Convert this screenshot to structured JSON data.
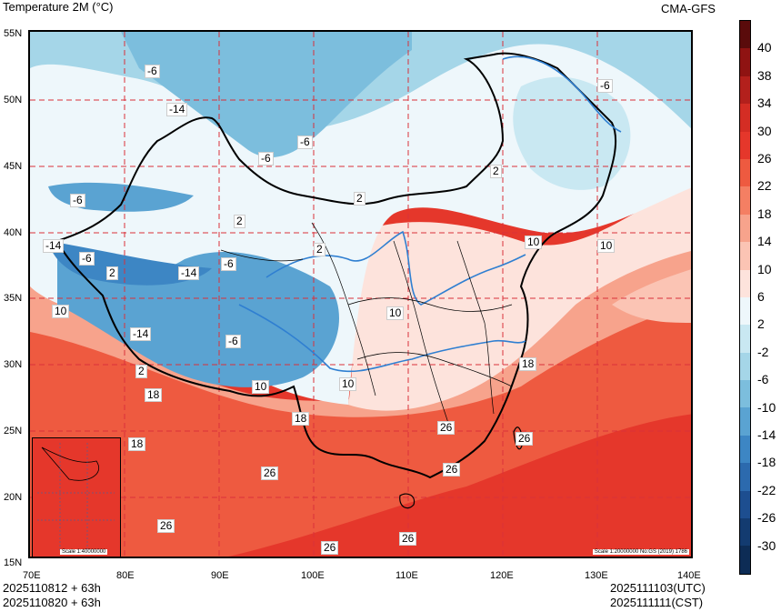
{
  "title": "Temperature  2M (°C)",
  "source": "CMA-GFS",
  "lat_labels": [
    "55N",
    "50N",
    "45N",
    "40N",
    "35N",
    "30N",
    "25N",
    "20N",
    "15N"
  ],
  "lon_labels": [
    "70E",
    "80E",
    "90E",
    "100E",
    "110E",
    "120E",
    "130E",
    "140E"
  ],
  "colorbar": {
    "labels": [
      "40",
      "38",
      "34",
      "30",
      "26",
      "22",
      "18",
      "14",
      "10",
      "6",
      "2",
      "-2",
      "-6",
      "-10",
      "-14",
      "-18",
      "-22",
      "-26",
      "-30"
    ],
    "colors": [
      "#5a0b0b",
      "#8f1312",
      "#b3201c",
      "#d42d24",
      "#e5372b",
      "#ee5a40",
      "#f47f63",
      "#f7a38c",
      "#fbc4b4",
      "#fde3dc",
      "#eef7fb",
      "#c9e8f2",
      "#a5d6e8",
      "#7cbedd",
      "#5aa3d2",
      "#3d86c4",
      "#2c6aae",
      "#1d4e90",
      "#133b70",
      "#0d2c55"
    ]
  },
  "contour_labels": [
    "-6",
    "-14",
    "-6",
    "-6",
    "-6",
    "2",
    "2",
    "2",
    "-14",
    "-6",
    "-14",
    "-6",
    "2",
    "10",
    "-14",
    "10",
    "-6",
    "2",
    "10",
    "2",
    "10",
    "-6",
    "10",
    "18",
    "10",
    "18",
    "26",
    "26",
    "26",
    "26",
    "26",
    "18",
    "18",
    "26",
    "26"
  ],
  "inset_scale": "Scale 1:40000000",
  "main_scale": "Scale 1:20000000 No:GS (2019) 1786",
  "init_times": [
    "2025110812 + 63h",
    "2025110820 + 63h"
  ],
  "valid_times": [
    "2025111103(UTC)",
    "2025111111(CST)"
  ]
}
